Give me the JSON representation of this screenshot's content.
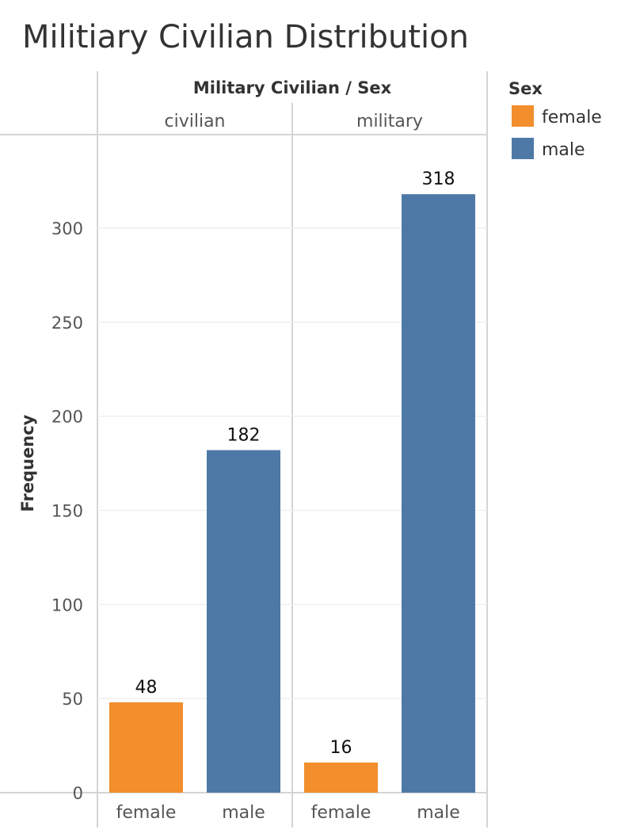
{
  "chart_data": {
    "type": "bar",
    "title": "Militiary Civilian Distribution",
    "column_header": "Military Civilian  /  Sex",
    "ylabel": "Frequency",
    "ylim": [
      0,
      340
    ],
    "yticks": [
      0,
      50,
      100,
      150,
      200,
      250,
      300
    ],
    "grid": true,
    "panels": [
      {
        "name": "civilian",
        "categories": [
          "female",
          "male"
        ],
        "values": [
          48,
          182
        ]
      },
      {
        "name": "military",
        "categories": [
          "female",
          "male"
        ],
        "values": [
          16,
          318
        ]
      }
    ],
    "legend": {
      "title": "Sex",
      "placement": "right",
      "items": [
        {
          "label": "female",
          "color": "#f28e2b"
        },
        {
          "label": "male",
          "color": "#4e79a7"
        }
      ]
    }
  }
}
